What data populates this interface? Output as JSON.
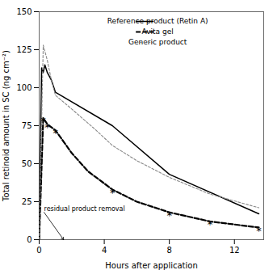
{
  "chart_data": {
    "type": "line",
    "xlabel": "Hours after application",
    "ylabel": "Total retinoid amount in SC (ng cm⁻²)",
    "xlim": [
      0,
      13.8
    ],
    "ylim": [
      0,
      150
    ],
    "xticks": [
      0,
      4,
      8,
      12
    ],
    "yticks": [
      0,
      25,
      50,
      75,
      100,
      125,
      150
    ],
    "legend": "upper right",
    "series": [
      {
        "name": "Reference product (Retin A)",
        "color": "#000000",
        "line_style": "solid",
        "x": [
          0,
          0.15,
          0.25,
          0.35,
          0.5,
          0.75,
          1.0,
          4.5,
          8.0,
          13.5
        ],
        "values": [
          0,
          113,
          110,
          115,
          110,
          105,
          97,
          75,
          43,
          17
        ]
      },
      {
        "name": "Avita gel",
        "color": "#000000",
        "line_style": "dashed",
        "x": [
          0,
          0.25,
          0.5,
          1.0,
          2.0,
          3.0,
          4.5,
          6.0,
          8.0,
          10.5,
          13.5
        ],
        "values": [
          0,
          80,
          76,
          72,
          57,
          45,
          33,
          25,
          18,
          12,
          8
        ]
      },
      {
        "name": "Generic product",
        "color": "#888888",
        "line_style": "dashed",
        "x": [
          0,
          0.25,
          0.5,
          0.75,
          1.0,
          2.0,
          3.5,
          4.5,
          6.0,
          8.0,
          10.5,
          13.5
        ],
        "values": [
          0,
          128,
          118,
          105,
          95,
          86,
          72,
          62,
          52,
          41,
          30,
          21
        ]
      }
    ],
    "annotations": [
      {
        "text": "*",
        "x": 0.25,
        "y": 80
      },
      {
        "text": "*",
        "x": 0.5,
        "y": 76
      },
      {
        "text": "*",
        "x": 1.0,
        "y": 72
      },
      {
        "text": "*",
        "x": 4.5,
        "y": 33
      },
      {
        "text": "*",
        "x": 8.0,
        "y": 18
      },
      {
        "text": "*",
        "x": 10.5,
        "y": 12
      },
      {
        "text": "*",
        "x": 13.5,
        "y": 8
      },
      {
        "text": "residual product removal",
        "x": 1.5,
        "y": 0,
        "text_x": 0.3,
        "text_y": 18
      }
    ]
  }
}
